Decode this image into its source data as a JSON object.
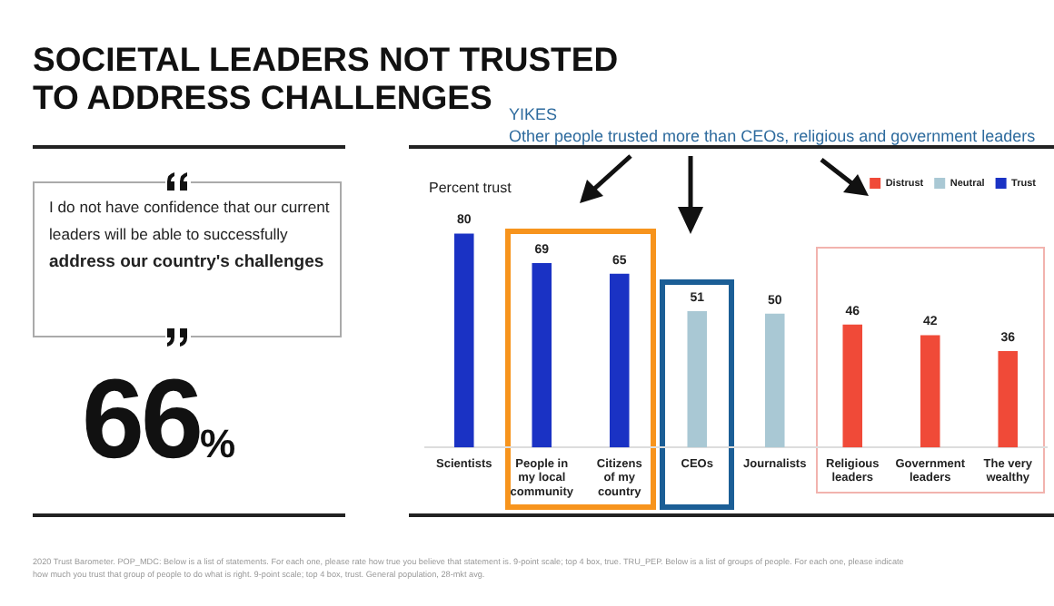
{
  "chart_data": {
    "type": "bar",
    "title": "SOCIETAL LEADERS NOT TRUSTED TO ADDRESS CHALLENGES",
    "subtitle": "YIKES",
    "ylabel": "Percent trust",
    "categories": [
      "Scientists",
      "People in my local community",
      "Citizens of my country",
      "CEOs",
      "Journalists",
      "Religious leaders",
      "Government leaders",
      "The very wealthy"
    ],
    "series": [
      {
        "name": "Distrust",
        "color": "#f04a38",
        "values": [
          null,
          null,
          null,
          null,
          null,
          46,
          42,
          36
        ]
      },
      {
        "name": "Neutral",
        "color": "#a9c8d4",
        "values": [
          null,
          null,
          null,
          51,
          50,
          null,
          null,
          null
        ]
      },
      {
        "name": "Trust",
        "color": "#1a32c4",
        "values": [
          80,
          69,
          65,
          null,
          null,
          null,
          null,
          null
        ]
      }
    ],
    "annotations": [
      "Other people trusted more than CEOs, religious and government leaders",
      "I do not have confidence that our current leaders will be able to successfully",
      "address our country's challenges",
      "66$_{%}$",
      "2020 Trust Barometer. POP_MDC: Below is a list of statements. For each one, please rate how true you believe that statement is. 9-point scale; top 4 box, true. TRU_PEP. Below is a list of groups of people. For each one, please indicate how much you trust that group of people to do what is right. 9-point scale; top 4 box, trust. General population, 28-mkt avg."
    ],
    "data_labels": true,
    "legend": "top right",
    "tick_labels": "x",
    "grid": false
  }
}
